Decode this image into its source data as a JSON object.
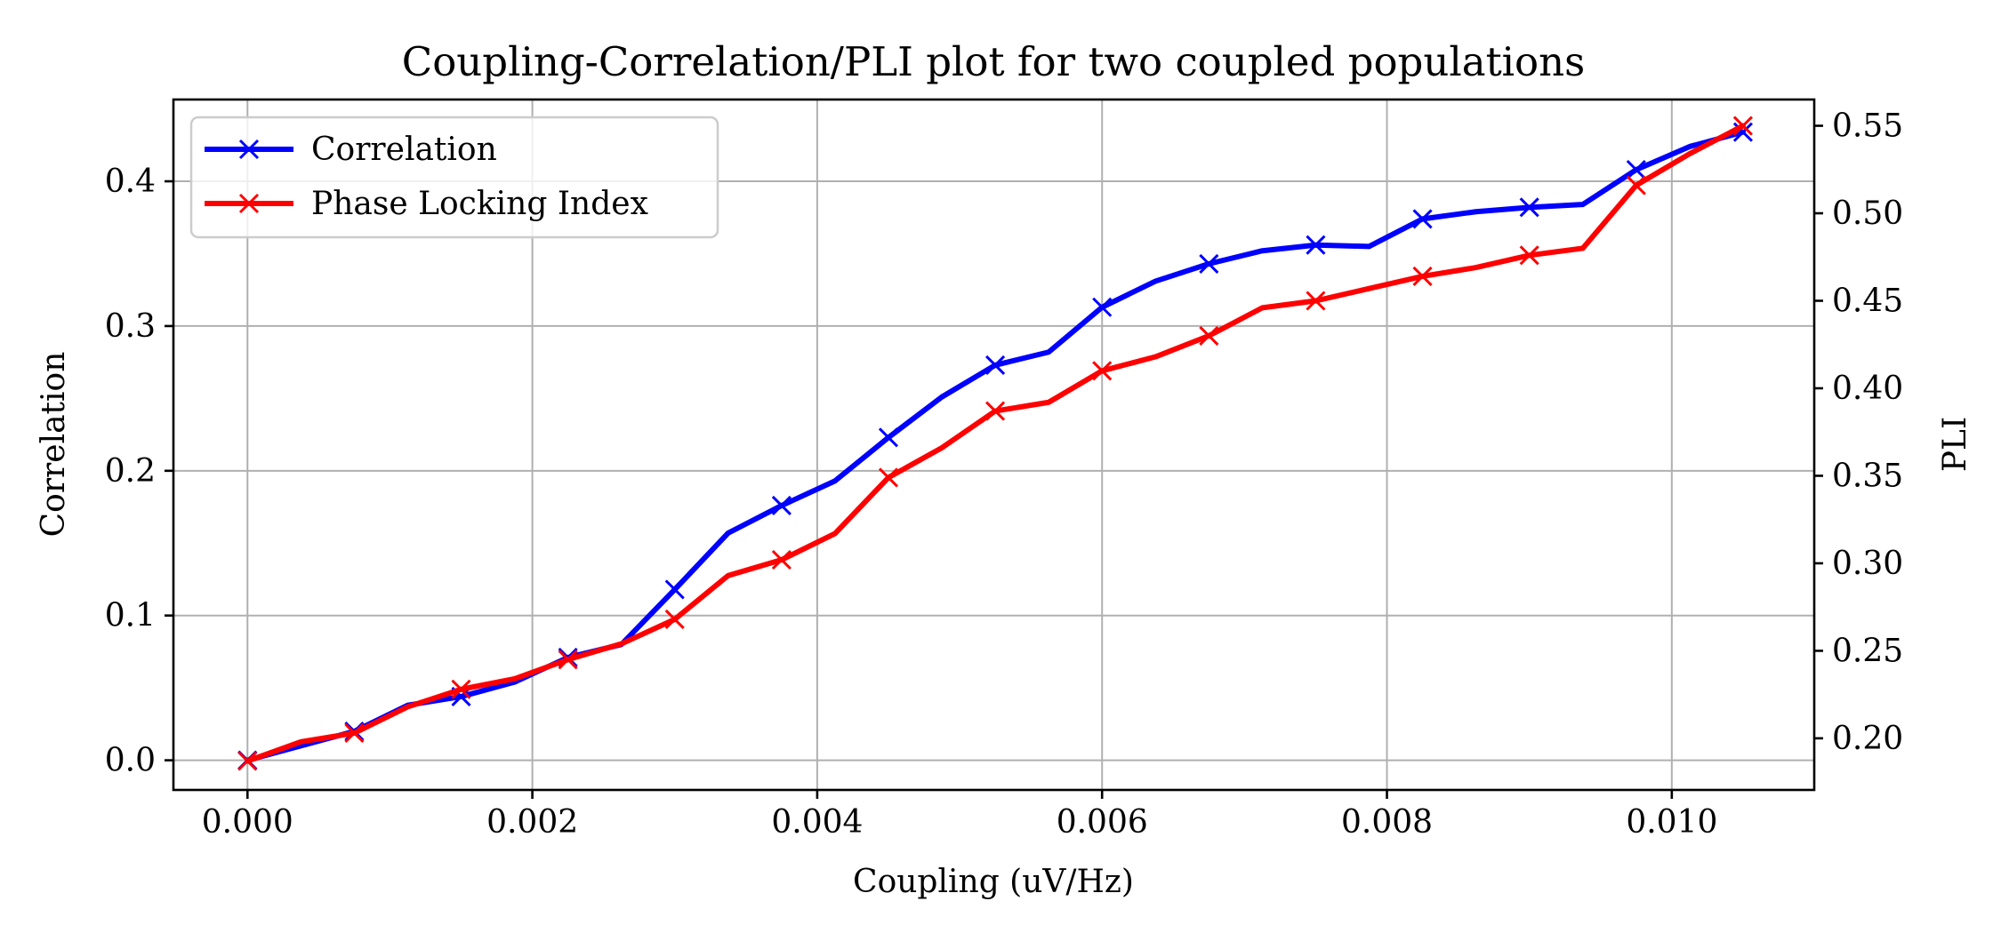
{
  "chart_data": {
    "type": "line",
    "title": "Coupling-Correlation/PLI plot for two coupled populations",
    "xlabel": "Coupling (uV/Hz)",
    "ylabel": "Correlation",
    "y2label": "PLI",
    "xlim": [
      -0.00052,
      0.011
    ],
    "ylim": [
      -0.0205,
      0.4565
    ],
    "y2lim": [
      0.1705,
      0.565
    ],
    "xticks": [
      0.0,
      0.002,
      0.004,
      0.006,
      0.008,
      0.01
    ],
    "xtick_labels": [
      "0.000",
      "0.002",
      "0.004",
      "0.006",
      "0.008",
      "0.010"
    ],
    "yticks": [
      0.0,
      0.1,
      0.2,
      0.3,
      0.4
    ],
    "ytick_labels": [
      "0.0",
      "0.1",
      "0.2",
      "0.3",
      "0.4"
    ],
    "y2ticks": [
      0.2,
      0.25,
      0.3,
      0.35,
      0.4,
      0.45,
      0.5,
      0.55
    ],
    "y2tick_labels": [
      "0.20",
      "0.25",
      "0.30",
      "0.35",
      "0.40",
      "0.45",
      "0.50",
      "0.55"
    ],
    "grid": true,
    "legend_position": "top-left",
    "x": [
      0.0,
      0.000375,
      0.00075,
      0.001125,
      0.0015,
      0.001875,
      0.00225,
      0.002625,
      0.003,
      0.003375,
      0.00375,
      0.004125,
      0.0045,
      0.004875,
      0.00525,
      0.005625,
      0.006,
      0.006375,
      0.00675,
      0.007125,
      0.0075,
      0.007875,
      0.00825,
      0.008625,
      0.009,
      0.009375,
      0.00975,
      0.010125,
      0.0105
    ],
    "series": [
      {
        "name": "Correlation",
        "axis": "left",
        "color": "#0000ff",
        "marker_every": 2,
        "values": [
          0.0,
          0.01,
          0.02,
          0.038,
          0.044,
          0.054,
          0.071,
          0.08,
          0.118,
          0.157,
          0.176,
          0.193,
          0.223,
          0.251,
          0.273,
          0.282,
          0.313,
          0.331,
          0.343,
          0.352,
          0.356,
          0.355,
          0.374,
          0.379,
          0.382,
          0.384,
          0.408,
          0.424,
          0.434
        ]
      },
      {
        "name": "Phase Locking Index",
        "axis": "right",
        "color": "#ff0000",
        "marker_every": 2,
        "values": [
          0.187,
          0.198,
          0.203,
          0.218,
          0.228,
          0.234,
          0.245,
          0.254,
          0.268,
          0.293,
          0.302,
          0.317,
          0.349,
          0.366,
          0.387,
          0.392,
          0.41,
          0.418,
          0.43,
          0.446,
          0.45,
          0.457,
          0.464,
          0.469,
          0.476,
          0.48,
          0.516,
          0.534,
          0.55
        ]
      }
    ]
  }
}
